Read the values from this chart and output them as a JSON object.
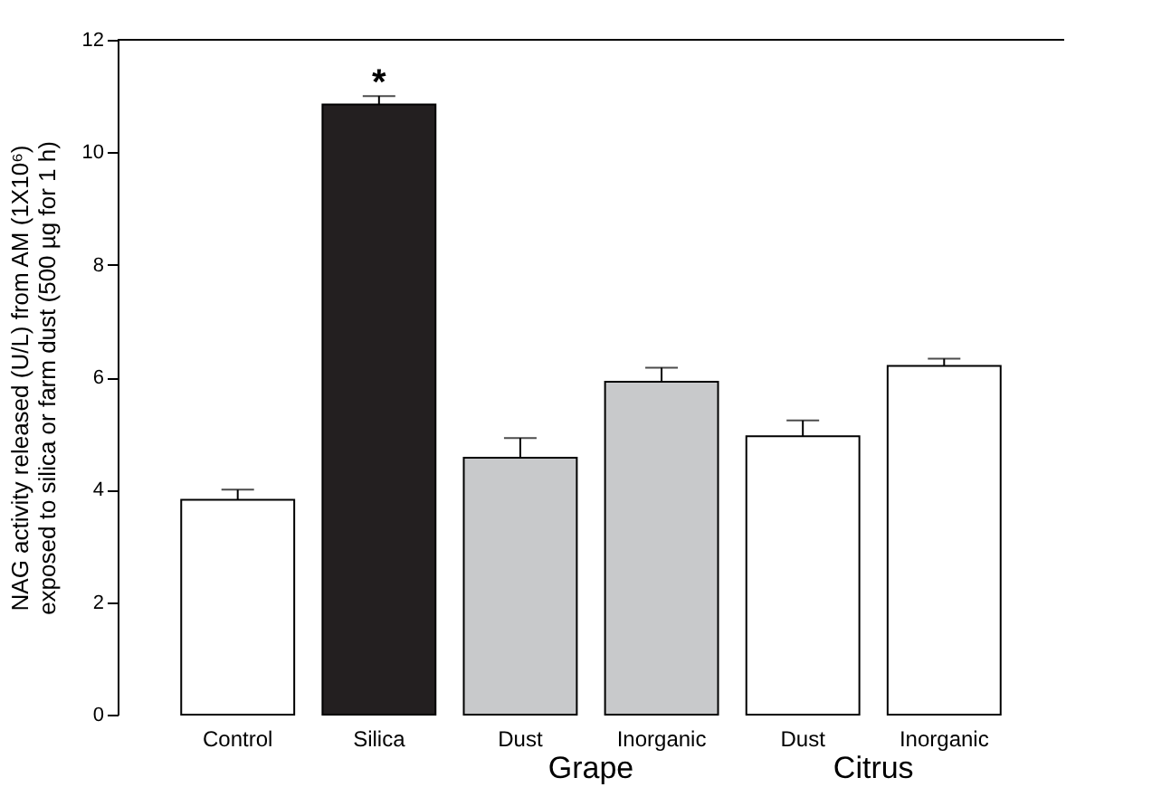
{
  "chart_data": {
    "type": "bar",
    "ylabel": "NAG activity released (U/L) from AM (1X10⁶)\nexposed to silica or farm dust (500 µg for 1 h)",
    "categories": [
      "Control",
      "Silica",
      "Dust",
      "Inorganic",
      "Dust",
      "Inorganic"
    ],
    "values": [
      3.82,
      10.85,
      4.57,
      5.92,
      4.95,
      6.2
    ],
    "errors": [
      0.18,
      0.15,
      0.35,
      0.25,
      0.28,
      0.13
    ],
    "colors": [
      "#ffffff",
      "#231f20",
      "#c8c9cb",
      "#c8c9cb",
      "#ffffff",
      "#ffffff"
    ],
    "ylim": [
      0,
      12
    ],
    "yticks": [
      0,
      2,
      4,
      6,
      8,
      10,
      12
    ],
    "grid": false,
    "annotations": [
      {
        "text": "*",
        "x": "Silica",
        "y": 11.0
      },
      "Grape",
      "Citrus"
    ]
  }
}
